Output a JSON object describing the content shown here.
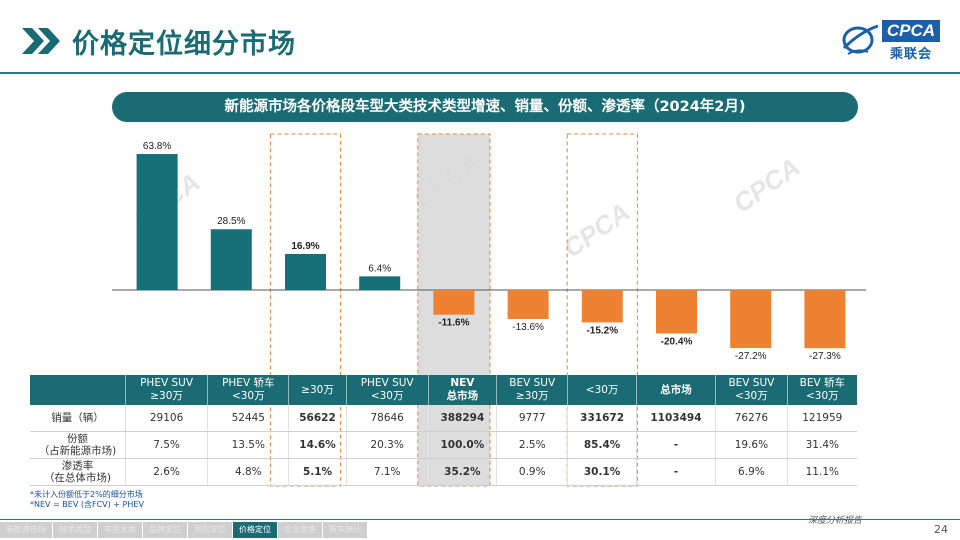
{
  "header": {
    "title": "价格定位细分市场"
  },
  "logo": {
    "text": "CPCA",
    "cn": "乘联会"
  },
  "chart_title": "新能源市场各价格段车型大类技术类型增速、销量、份额、渗透率（2024年2月)",
  "chart_data": {
    "type": "bar",
    "categories": [
      "PHEV SUV ≥30万",
      "PHEV 轿车 <30万",
      "≥30万",
      "PHEV SUV <30万",
      "NEV 总市场",
      "BEV SUV ≥30万",
      "<30万",
      "总市场",
      "BEV SUV <30万",
      "BEV 轿车 <30万"
    ],
    "values": [
      63.8,
      28.5,
      16.9,
      6.4,
      -11.6,
      -13.6,
      -15.2,
      -20.4,
      -27.2,
      -27.3
    ],
    "value_labels": [
      "63.8%",
      "28.5%",
      "16.9%",
      "6.4%",
      "-11.6%",
      "-13.6%",
      "-15.2%",
      "-20.4%",
      "-27.2%",
      "-27.3%"
    ],
    "bold_labels": [
      2,
      4,
      6,
      7
    ],
    "highlight_boxes": [
      2,
      6
    ],
    "shaded_column": 4,
    "positive_color": "#157077",
    "negative_color": "#ef8232",
    "ylim": [
      -30,
      65
    ]
  },
  "table": {
    "headers": [
      {
        "l1": "PHEV SUV",
        "l2": "≥30万",
        "bold": false
      },
      {
        "l1": "PHEV 轿车",
        "l2": "<30万",
        "bold": false
      },
      {
        "l1": "≥30万",
        "l2": "",
        "bold": false
      },
      {
        "l1": "PHEV SUV",
        "l2": "<30万",
        "bold": false
      },
      {
        "l1": "NEV",
        "l2": "总市场",
        "bold": true
      },
      {
        "l1": "BEV SUV",
        "l2": "≥30万",
        "bold": false
      },
      {
        "l1": "<30万",
        "l2": "",
        "bold": false
      },
      {
        "l1": "总市场",
        "l2": "",
        "bold": true
      },
      {
        "l1": "BEV SUV",
        "l2": "<30万",
        "bold": false
      },
      {
        "l1": "BEV 轿车",
        "l2": "<30万",
        "bold": false
      }
    ],
    "rows": [
      {
        "label1": "销量（辆）",
        "label2": "",
        "cells": [
          "29106",
          "52445",
          "56622",
          "78646",
          "388294",
          "9777",
          "331672",
          "1103494",
          "76276",
          "121959"
        ]
      },
      {
        "label1": "份额",
        "label2": "（占新能源市场)",
        "cells": [
          "7.5%",
          "13.5%",
          "14.6%",
          "20.3%",
          "100.0%",
          "2.5%",
          "85.4%",
          "-",
          "19.6%",
          "31.4%"
        ]
      },
      {
        "label1": "渗透率",
        "label2": "（在总体市场)",
        "cells": [
          "2.6%",
          "4.8%",
          "5.1%",
          "7.1%",
          "35.2%",
          "0.9%",
          "30.1%",
          "-",
          "6.9%",
          "11.1%"
        ]
      }
    ],
    "bold_cols": [
      2,
      4,
      6,
      7
    ]
  },
  "footnotes": [
    "*未计入份额低于2%的细分市场",
    "*NEV = BEV (含FCV) + PHEV"
  ],
  "report_tag": "深度分析报告",
  "page_number": "24",
  "nav": [
    "新能源市场",
    "技术类型",
    "车型大类",
    "品牌定位",
    "国别定位",
    "价格定位",
    "企业竞争",
    "新车统计"
  ],
  "nav_active": 5,
  "watermark": "CPCA"
}
